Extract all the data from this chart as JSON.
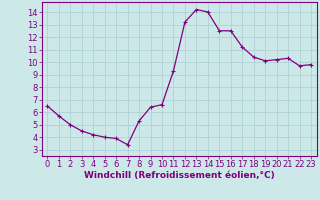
{
  "hours": [
    0,
    1,
    2,
    3,
    4,
    5,
    6,
    7,
    8,
    9,
    10,
    11,
    12,
    13,
    14,
    15,
    16,
    17,
    18,
    19,
    20,
    21,
    22,
    23
  ],
  "values": [
    6.5,
    5.7,
    5.0,
    4.5,
    4.2,
    4.0,
    3.9,
    3.4,
    5.3,
    6.4,
    6.6,
    9.3,
    13.2,
    14.2,
    14.0,
    12.5,
    12.5,
    11.2,
    10.4,
    10.1,
    10.2,
    10.3,
    9.7,
    9.8
  ],
  "line_color": "#800080",
  "marker": "+",
  "marker_color": "#800080",
  "bg_color": "#cce8e8",
  "grid_color": "#aacece",
  "xlabel": "Windchill (Refroidissement éolien,°C)",
  "xlabel_color": "#800080",
  "tick_color": "#800080",
  "ylim": [
    2.5,
    14.8
  ],
  "xlim": [
    -0.5,
    23.5
  ],
  "yticks": [
    3,
    4,
    5,
    6,
    7,
    8,
    9,
    10,
    11,
    12,
    13,
    14
  ],
  "xticks": [
    0,
    1,
    2,
    3,
    4,
    5,
    6,
    7,
    8,
    9,
    10,
    11,
    12,
    13,
    14,
    15,
    16,
    17,
    18,
    19,
    20,
    21,
    22,
    23
  ],
  "border_color": "#800080",
  "font_size": 6.0,
  "xlabel_font_size": 6.5,
  "linewidth": 0.9,
  "markersize": 2.5
}
